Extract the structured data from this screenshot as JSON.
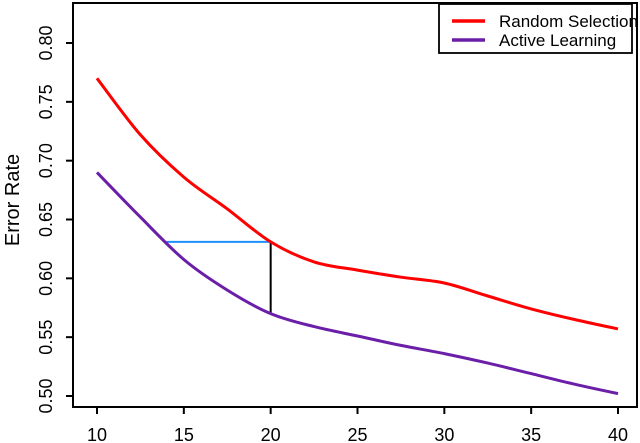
{
  "chart_data": {
    "type": "line",
    "title": "",
    "xlabel": "",
    "ylabel": "Error Rate",
    "xlim": [
      10,
      40
    ],
    "ylim": [
      0.5,
      0.8
    ],
    "xticks": [
      10,
      15,
      20,
      25,
      30,
      35,
      40
    ],
    "yticks": [
      0.5,
      0.55,
      0.6,
      0.65,
      0.7,
      0.75,
      0.8
    ],
    "ytick_decimals": 2,
    "grid": false,
    "legend_position": "top-right",
    "axis_color": "#000000",
    "x": [
      10,
      12.5,
      15,
      17.5,
      20,
      22.5,
      25,
      27.5,
      30,
      32.5,
      35,
      37.5,
      40
    ],
    "series": [
      {
        "name": "Random Selection",
        "color": "#FF0000",
        "line_width": 3,
        "values": [
          0.77,
          0.722,
          0.686,
          0.659,
          0.631,
          0.614,
          0.607,
          0.601,
          0.596,
          0.585,
          0.574,
          0.565,
          0.557
        ]
      },
      {
        "name": "Active Learning",
        "color": "#6B1FA8",
        "line_width": 3,
        "values": [
          0.69,
          0.652,
          0.616,
          0.59,
          0.57,
          0.559,
          0.551,
          0.543,
          0.536,
          0.528,
          0.519,
          0.51,
          0.502
        ]
      }
    ],
    "annotations": [
      {
        "name": "equal-error-hline",
        "color": "#1E8FFF",
        "line_width": 2,
        "from": [
          14,
          0.631
        ],
        "to": [
          20,
          0.631
        ]
      },
      {
        "name": "error-gap-vline",
        "color": "#000000",
        "line_width": 2,
        "from": [
          20,
          0.631
        ],
        "to": [
          20,
          0.57
        ]
      }
    ]
  }
}
